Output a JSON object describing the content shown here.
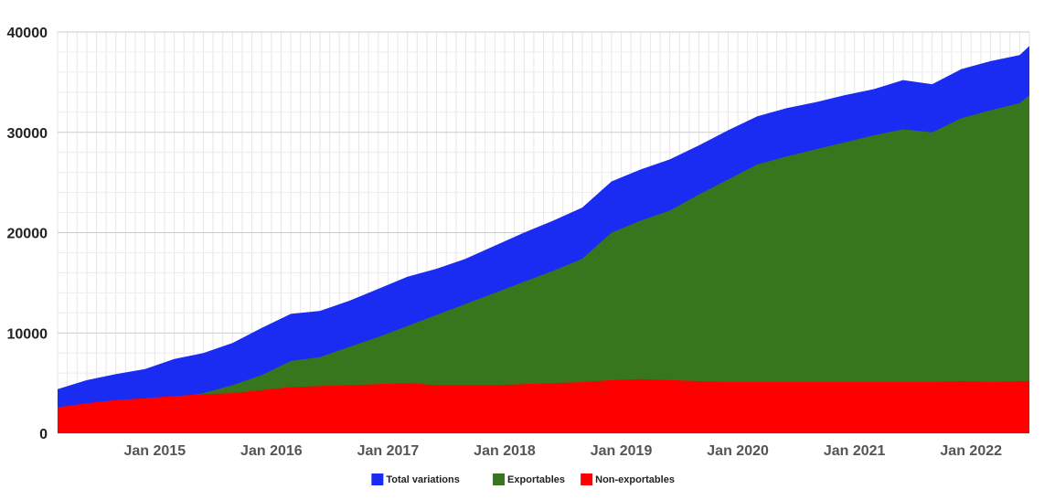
{
  "chart_data": {
    "type": "area",
    "title": "",
    "xlabel": "",
    "ylabel": "",
    "x_start": "2014-03",
    "x_end": "2022-07",
    "xlim": [
      "2014-03",
      "2022-07"
    ],
    "ylim": [
      0,
      40000
    ],
    "y_ticks": [
      "0",
      "10000",
      "20000",
      "30000",
      "40000"
    ],
    "x_ticks": [
      {
        "label": "Jan 2015",
        "date": "2015-01"
      },
      {
        "label": "Jan 2016",
        "date": "2016-01"
      },
      {
        "label": "Jan 2017",
        "date": "2017-01"
      },
      {
        "label": "Jan 2018",
        "date": "2018-01"
      },
      {
        "label": "Jan 2019",
        "date": "2019-01"
      },
      {
        "label": "Jan 2020",
        "date": "2020-01"
      },
      {
        "label": "Jan 2021",
        "date": "2021-01"
      },
      {
        "label": "Jan 2022",
        "date": "2022-01"
      }
    ],
    "grid": true,
    "legend_position": "bottom",
    "series": [
      {
        "name": "Total variations",
        "color": "#1a2cf2",
        "points": [
          [
            "2014-03",
            4400
          ],
          [
            "2014-06",
            5300
          ],
          [
            "2014-09",
            5900
          ],
          [
            "2014-12",
            6400
          ],
          [
            "2015-03",
            7400
          ],
          [
            "2015-06",
            8000
          ],
          [
            "2015-09",
            9000
          ],
          [
            "2015-12",
            10500
          ],
          [
            "2016-03",
            11900
          ],
          [
            "2016-06",
            12200
          ],
          [
            "2016-09",
            13200
          ],
          [
            "2016-12",
            14400
          ],
          [
            "2017-03",
            15600
          ],
          [
            "2017-06",
            16400
          ],
          [
            "2017-09",
            17400
          ],
          [
            "2017-12",
            18700
          ],
          [
            "2018-03",
            20000
          ],
          [
            "2018-06",
            21200
          ],
          [
            "2018-09",
            22500
          ],
          [
            "2018-12",
            25100
          ],
          [
            "2019-03",
            26300
          ],
          [
            "2019-06",
            27300
          ],
          [
            "2019-09",
            28700
          ],
          [
            "2019-12",
            30200
          ],
          [
            "2020-03",
            31600
          ],
          [
            "2020-06",
            32400
          ],
          [
            "2020-09",
            33000
          ],
          [
            "2020-12",
            33700
          ],
          [
            "2021-03",
            34300
          ],
          [
            "2021-06",
            35200
          ],
          [
            "2021-09",
            34800
          ],
          [
            "2021-12",
            36300
          ],
          [
            "2022-03",
            37100
          ],
          [
            "2022-06",
            37700
          ],
          [
            "2022-07",
            38600
          ]
        ]
      },
      {
        "name": "Exportables",
        "color": "#38761d",
        "points": [
          [
            "2014-03",
            1800
          ],
          [
            "2014-06",
            2200
          ],
          [
            "2014-09",
            2600
          ],
          [
            "2014-12",
            3000
          ],
          [
            "2015-03",
            3500
          ],
          [
            "2015-06",
            4000
          ],
          [
            "2015-09",
            4800
          ],
          [
            "2015-12",
            5800
          ],
          [
            "2016-03",
            7200
          ],
          [
            "2016-06",
            7600
          ],
          [
            "2016-09",
            8600
          ],
          [
            "2016-12",
            9600
          ],
          [
            "2017-03",
            10700
          ],
          [
            "2017-06",
            11800
          ],
          [
            "2017-09",
            12900
          ],
          [
            "2017-12",
            14000
          ],
          [
            "2018-03",
            15100
          ],
          [
            "2018-06",
            16200
          ],
          [
            "2018-09",
            17400
          ],
          [
            "2018-12",
            20000
          ],
          [
            "2019-03",
            21200
          ],
          [
            "2019-06",
            22200
          ],
          [
            "2019-09",
            23800
          ],
          [
            "2019-12",
            25300
          ],
          [
            "2020-03",
            26800
          ],
          [
            "2020-06",
            27600
          ],
          [
            "2020-09",
            28300
          ],
          [
            "2020-12",
            29000
          ],
          [
            "2021-03",
            29700
          ],
          [
            "2021-06",
            30300
          ],
          [
            "2021-09",
            30000
          ],
          [
            "2021-12",
            31400
          ],
          [
            "2022-03",
            32200
          ],
          [
            "2022-06",
            32900
          ],
          [
            "2022-07",
            33700
          ]
        ]
      },
      {
        "name": "Non-exportables",
        "color": "#ff0000",
        "points": [
          [
            "2014-03",
            2600
          ],
          [
            "2014-06",
            3000
          ],
          [
            "2014-09",
            3300
          ],
          [
            "2014-12",
            3500
          ],
          [
            "2015-03",
            3700
          ],
          [
            "2015-06",
            3900
          ],
          [
            "2015-09",
            4000
          ],
          [
            "2015-12",
            4300
          ],
          [
            "2016-03",
            4600
          ],
          [
            "2016-06",
            4700
          ],
          [
            "2016-09",
            4800
          ],
          [
            "2016-12",
            4900
          ],
          [
            "2017-03",
            5000
          ],
          [
            "2017-06",
            4800
          ],
          [
            "2017-09",
            4800
          ],
          [
            "2017-12",
            4800
          ],
          [
            "2018-03",
            4900
          ],
          [
            "2018-06",
            5000
          ],
          [
            "2018-09",
            5100
          ],
          [
            "2018-12",
            5300
          ],
          [
            "2019-03",
            5400
          ],
          [
            "2019-06",
            5300
          ],
          [
            "2019-09",
            5200
          ],
          [
            "2019-12",
            5100
          ],
          [
            "2020-03",
            5100
          ],
          [
            "2020-06",
            5100
          ],
          [
            "2020-09",
            5100
          ],
          [
            "2020-12",
            5100
          ],
          [
            "2021-03",
            5100
          ],
          [
            "2021-06",
            5100
          ],
          [
            "2021-09",
            5100
          ],
          [
            "2021-12",
            5200
          ],
          [
            "2022-03",
            5100
          ],
          [
            "2022-06",
            5200
          ],
          [
            "2022-07",
            5200
          ]
        ]
      }
    ],
    "legend": [
      {
        "label": "Total  variations",
        "color": "#1a2cf2"
      },
      {
        "label": "Exportables",
        "color": "#38761d"
      },
      {
        "label": "Non-exportables",
        "color": "#ff0000"
      }
    ]
  }
}
